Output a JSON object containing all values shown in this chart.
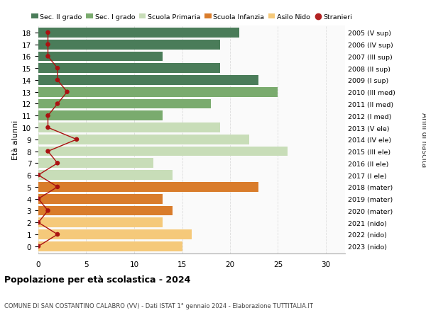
{
  "ages": [
    18,
    17,
    16,
    15,
    14,
    13,
    12,
    11,
    10,
    9,
    8,
    7,
    6,
    5,
    4,
    3,
    2,
    1,
    0
  ],
  "years": [
    "2005 (V sup)",
    "2006 (IV sup)",
    "2007 (III sup)",
    "2008 (II sup)",
    "2009 (I sup)",
    "2010 (III med)",
    "2011 (II med)",
    "2012 (I med)",
    "2013 (V ele)",
    "2014 (IV ele)",
    "2015 (III ele)",
    "2016 (II ele)",
    "2017 (I ele)",
    "2018 (mater)",
    "2019 (mater)",
    "2020 (mater)",
    "2021 (nido)",
    "2022 (nido)",
    "2023 (nido)"
  ],
  "bar_values": [
    21,
    19,
    13,
    19,
    23,
    25,
    18,
    13,
    19,
    22,
    26,
    12,
    14,
    23,
    13,
    14,
    13,
    16,
    15
  ],
  "stranieri": [
    1,
    1,
    1,
    2,
    2,
    3,
    2,
    1,
    1,
    4,
    1,
    2,
    0,
    2,
    0,
    1,
    0,
    2,
    0
  ],
  "bar_colors": [
    "#4a7c59",
    "#4a7c59",
    "#4a7c59",
    "#4a7c59",
    "#4a7c59",
    "#7aab6e",
    "#7aab6e",
    "#7aab6e",
    "#c8ddb8",
    "#c8ddb8",
    "#c8ddb8",
    "#c8ddb8",
    "#c8ddb8",
    "#d97c2b",
    "#d97c2b",
    "#d97c2b",
    "#f5c97a",
    "#f5c97a",
    "#f5c97a"
  ],
  "legend_labels": [
    "Sec. II grado",
    "Sec. I grado",
    "Scuola Primaria",
    "Scuola Infanzia",
    "Asilo Nido",
    "Stranieri"
  ],
  "legend_colors_list": [
    "#4a7c59",
    "#7aab6e",
    "#c8ddb8",
    "#d97c2b",
    "#f5c97a",
    "#b22222"
  ],
  "title": "Popolazione per età scolastica - 2024",
  "subtitle": "COMUNE DI SAN COSTANTINO CALABRO (VV) - Dati ISTAT 1° gennaio 2024 - Elaborazione TUTTITALIA.IT",
  "ylabel_left": "Età alunni",
  "ylabel_right": "Anni di nascita",
  "xlim": [
    0,
    32
  ],
  "xticks": [
    0,
    5,
    10,
    15,
    20,
    25,
    30
  ],
  "bar_height": 0.82,
  "bg_color": "#ffffff",
  "plot_bg_color": "#fafafa",
  "grid_color": "#dddddd",
  "stranieri_color": "#aa1111"
}
